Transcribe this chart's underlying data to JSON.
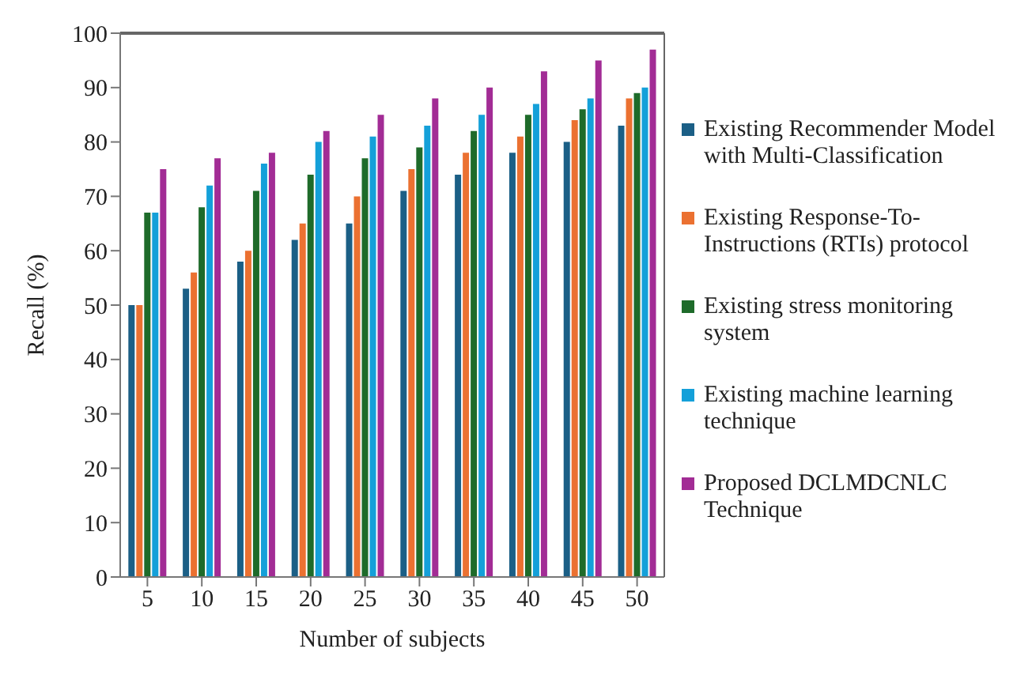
{
  "chart_data": {
    "type": "bar",
    "xlabel": "Number of subjects",
    "ylabel": "Recall (%)",
    "categories": [
      "5",
      "10",
      "15",
      "20",
      "25",
      "30",
      "35",
      "40",
      "45",
      "50"
    ],
    "series": [
      {
        "name": "Existing Recommender Model with Multi-Classification",
        "color": "#1b5f86",
        "values": [
          50,
          53,
          58,
          62,
          65,
          71,
          74,
          78,
          80,
          83
        ]
      },
      {
        "name": "Existing Response-To-Instructions (RTIs) protocol",
        "color": "#eb7131",
        "values": [
          50,
          56,
          60,
          65,
          70,
          75,
          78,
          81,
          84,
          88
        ]
      },
      {
        "name": "Existing stress monitoring system",
        "color": "#1e6b2a",
        "values": [
          67,
          68,
          71,
          74,
          77,
          79,
          82,
          85,
          86,
          89
        ]
      },
      {
        "name": "Existing machine learning technique",
        "color": "#14a0d9",
        "values": [
          67,
          72,
          76,
          80,
          81,
          83,
          85,
          87,
          88,
          90
        ]
      },
      {
        "name": "Proposed DCLMDCNLC Technique",
        "color": "#a22c95",
        "values": [
          75,
          77,
          78,
          82,
          85,
          88,
          90,
          93,
          95,
          97
        ]
      }
    ],
    "ylim": [
      0,
      100
    ],
    "yticks": [
      0,
      10,
      20,
      30,
      40,
      50,
      60,
      70,
      80,
      90,
      100
    ],
    "grid": false,
    "legend": "right"
  }
}
